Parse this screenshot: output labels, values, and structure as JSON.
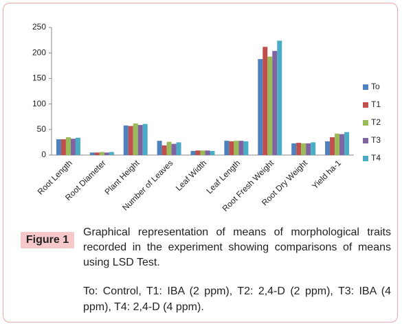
{
  "chart_data": {
    "type": "bar",
    "categories": [
      "Root Length",
      "Root Diameter",
      "Plant Height",
      "Number of Leaves",
      "Leaf Width",
      "Leaf Length",
      "Root Fresh Weight",
      "Root Dry Weight",
      "Yield ha-1"
    ],
    "series": [
      {
        "name": "To",
        "color": "#4f81bd",
        "values": [
          31,
          5,
          58,
          28,
          8,
          28,
          188,
          23,
          27
        ]
      },
      {
        "name": "T1",
        "color": "#c0504d",
        "values": [
          31,
          5,
          57,
          19,
          9,
          27,
          212,
          24,
          35
        ]
      },
      {
        "name": "T2",
        "color": "#9bbb59",
        "values": [
          35,
          6,
          62,
          26,
          9,
          28,
          193,
          23,
          42
        ]
      },
      {
        "name": "T3",
        "color": "#8064a2",
        "values": [
          32,
          5,
          59,
          22,
          9,
          28,
          204,
          23,
          41
        ]
      },
      {
        "name": "T4",
        "color": "#4bacc6",
        "values": [
          34,
          6,
          61,
          25,
          8,
          27,
          224,
          25,
          45
        ]
      }
    ],
    "ylim": [
      0,
      250
    ],
    "yticks": [
      0,
      50,
      100,
      150,
      200,
      250
    ],
    "grid": false,
    "legend": "right"
  },
  "figure": {
    "label": "Figure 1",
    "caption": "Graphical representation of means of morphological traits recorded in the experiment showing comparisons of means using LSD Test.",
    "note": "To: Control, T1: IBA (2 ppm), T2: 2,4-D (2 ppm), T3: IBA (4 ppm), T4: 2,4-D (4 ppm)."
  }
}
